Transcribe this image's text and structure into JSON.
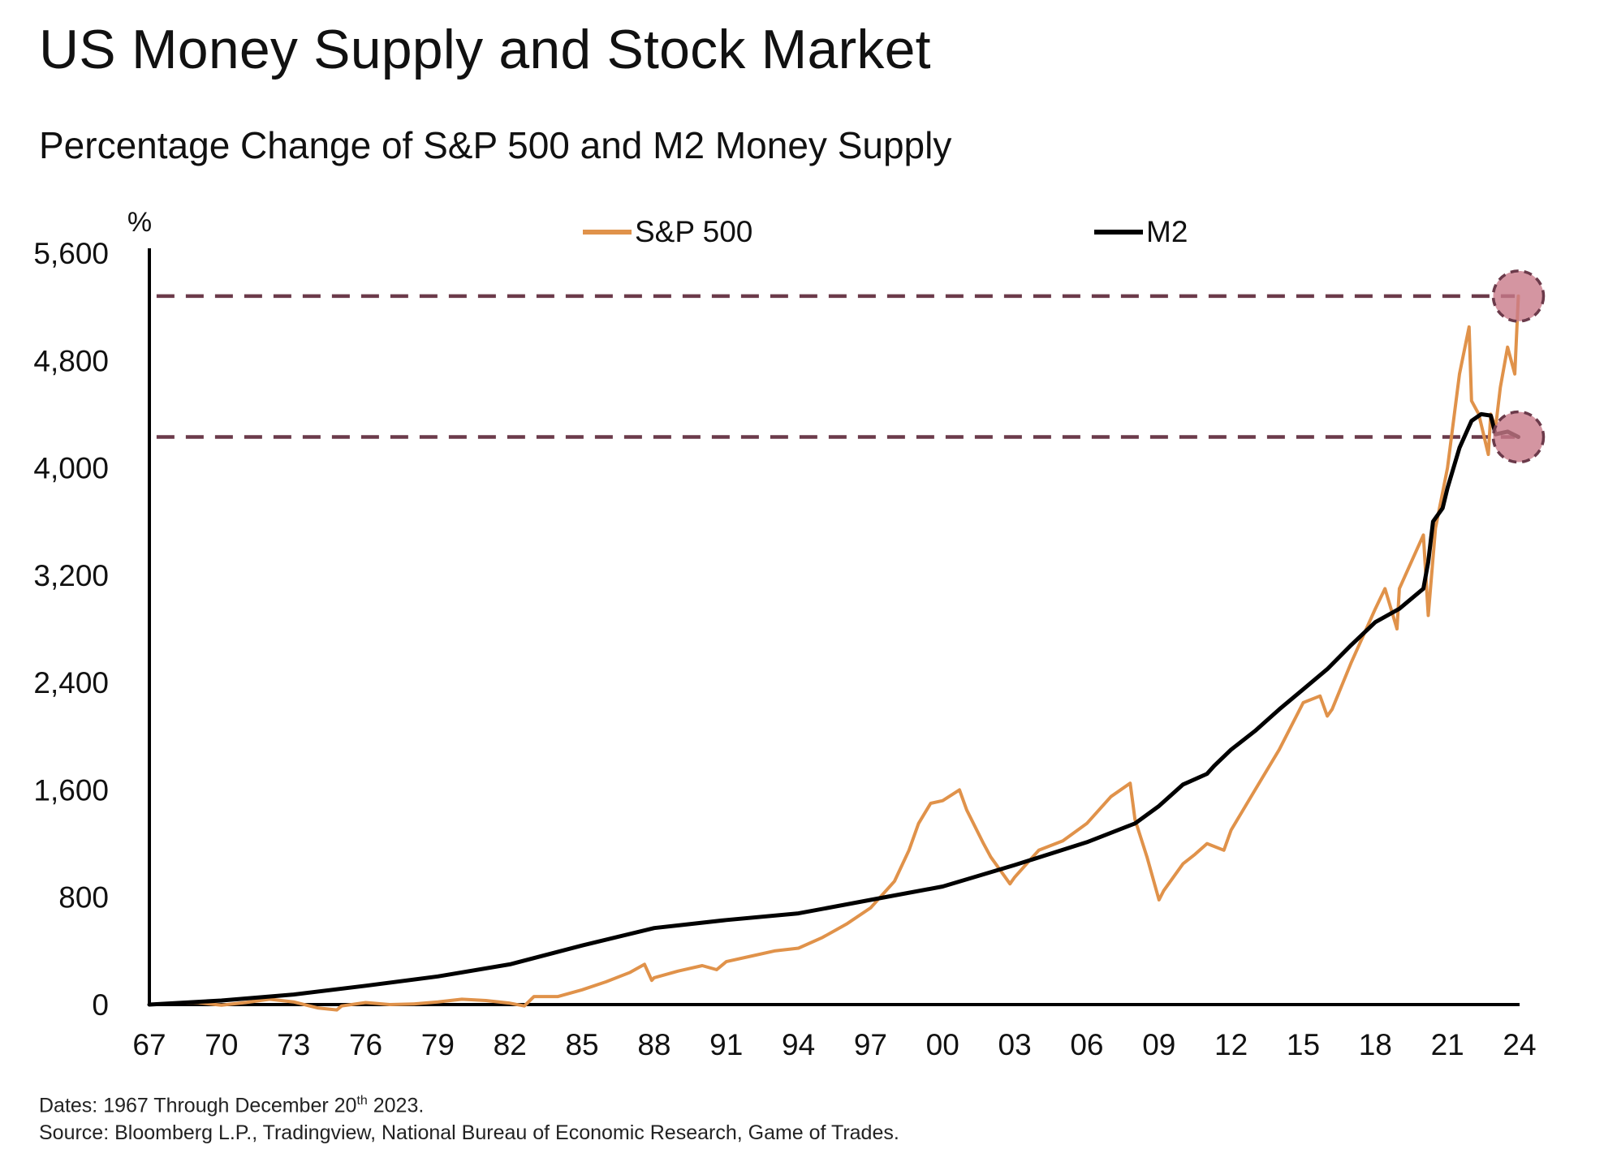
{
  "title": "US Money Supply and Stock Market",
  "subtitle": "Percentage Change of S&P 500 and M2 Money Supply",
  "footnote": {
    "dates_prefix": "Dates: 1967 Through December 20",
    "dates_sup": "th",
    "dates_suffix": " 2023.",
    "source": "Source: Bloomberg L.P., Tradingview, National Bureau of Economic Research, Game of Trades."
  },
  "chart_data": {
    "type": "line",
    "title": "US Money Supply and Stock Market",
    "subtitle": "Percentage Change of S&P 500 and M2 Money Supply",
    "xlabel": "",
    "ylabel": "%",
    "xlim": [
      1967,
      2024
    ],
    "ylim": [
      0,
      5600
    ],
    "x_ticks": [
      1967,
      1970,
      1973,
      1976,
      1979,
      1982,
      1985,
      1988,
      1991,
      1994,
      1997,
      2000,
      2003,
      2006,
      2009,
      2012,
      2015,
      2018,
      2021,
      2024
    ],
    "x_tick_labels": [
      "67",
      "70",
      "73",
      "76",
      "79",
      "82",
      "85",
      "88",
      "91",
      "94",
      "97",
      "00",
      "03",
      "06",
      "09",
      "12",
      "15",
      "18",
      "21",
      "24"
    ],
    "y_ticks": [
      0,
      800,
      1600,
      2400,
      3200,
      4000,
      4800,
      5600
    ],
    "y_tick_labels": [
      "0",
      "800",
      "1,600",
      "2,400",
      "3,200",
      "4,000",
      "4,800",
      "5,600"
    ],
    "grid": false,
    "legend_position": "top-center",
    "series": [
      {
        "name": "S&P 500",
        "color": "#E0924A",
        "x": [
          1967,
          1968,
          1969,
          1970,
          1971,
          1972,
          1973,
          1974,
          1974.8,
          1975,
          1976,
          1977,
          1978,
          1979,
          1980,
          1981,
          1982,
          1982.6,
          1983,
          1984,
          1985,
          1986,
          1987,
          1987.6,
          1987.9,
          1988,
          1989,
          1990,
          1990.6,
          1991,
          1992,
          1993,
          1994,
          1995,
          1996,
          1997,
          1998,
          1998.6,
          1999,
          1999.5,
          2000,
          2000.7,
          2001,
          2001.7,
          2002,
          2002.8,
          2003,
          2004,
          2005,
          2006,
          2007,
          2007.8,
          2008,
          2008.5,
          2009,
          2009.2,
          2010,
          2010.5,
          2011,
          2011.7,
          2012,
          2013,
          2014,
          2015,
          2015.7,
          2016,
          2016.2,
          2017,
          2018,
          2018.4,
          2018.9,
          2019,
          2019.5,
          2020,
          2020.2,
          2020.5,
          2021,
          2021.5,
          2021.9,
          2022,
          2022.3,
          2022.7,
          2022.8,
          2023,
          2023.2,
          2023.5,
          2023.8,
          2023.95
        ],
        "values": [
          0,
          10,
          15,
          -5,
          15,
          40,
          20,
          -25,
          -40,
          -10,
          15,
          0,
          5,
          20,
          40,
          30,
          10,
          -10,
          60,
          60,
          110,
          170,
          240,
          300,
          180,
          200,
          250,
          290,
          260,
          320,
          360,
          400,
          420,
          500,
          600,
          720,
          920,
          1150,
          1350,
          1500,
          1520,
          1600,
          1450,
          1200,
          1100,
          900,
          950,
          1150,
          1220,
          1350,
          1550,
          1650,
          1380,
          1100,
          780,
          850,
          1050,
          1120,
          1200,
          1150,
          1300,
          1600,
          1900,
          2250,
          2300,
          2150,
          2200,
          2550,
          2950,
          3100,
          2800,
          3100,
          3300,
          3500,
          2900,
          3550,
          4000,
          4700,
          5050,
          4500,
          4400,
          4100,
          4400,
          4300,
          4600,
          4900,
          4700,
          5280
        ]
      },
      {
        "name": "M2",
        "color": "#000000",
        "x": [
          1967,
          1970,
          1973,
          1976,
          1979,
          1982,
          1985,
          1988,
          1991,
          1994,
          1997,
          2000,
          2003,
          2006,
          2008,
          2009,
          2010,
          2011,
          2011.3,
          2012,
          2013,
          2014,
          2015,
          2016,
          2017,
          2018,
          2019,
          2020,
          2020.2,
          2020.4,
          2020.8,
          2021,
          2021.5,
          2022,
          2022.4,
          2022.8,
          2023,
          2023.5,
          2023.95
        ],
        "values": [
          0,
          30,
          75,
          140,
          210,
          300,
          440,
          570,
          630,
          680,
          780,
          880,
          1040,
          1210,
          1350,
          1480,
          1640,
          1720,
          1780,
          1900,
          2040,
          2200,
          2350,
          2500,
          2680,
          2850,
          2950,
          3100,
          3300,
          3600,
          3700,
          3850,
          4150,
          4350,
          4400,
          4390,
          4250,
          4270,
          4230
        ]
      }
    ],
    "reference_lines": [
      {
        "y": 5280,
        "style": "dashed",
        "color": "#6B3A4A"
      },
      {
        "y": 4230,
        "style": "dashed",
        "color": "#6B3A4A"
      }
    ],
    "highlight_markers": [
      {
        "x": 2023.95,
        "y": 5280,
        "series": "S&P 500",
        "color": "#C97A8A"
      },
      {
        "x": 2023.95,
        "y": 4230,
        "series": "M2",
        "color": "#C97A8A"
      }
    ]
  }
}
